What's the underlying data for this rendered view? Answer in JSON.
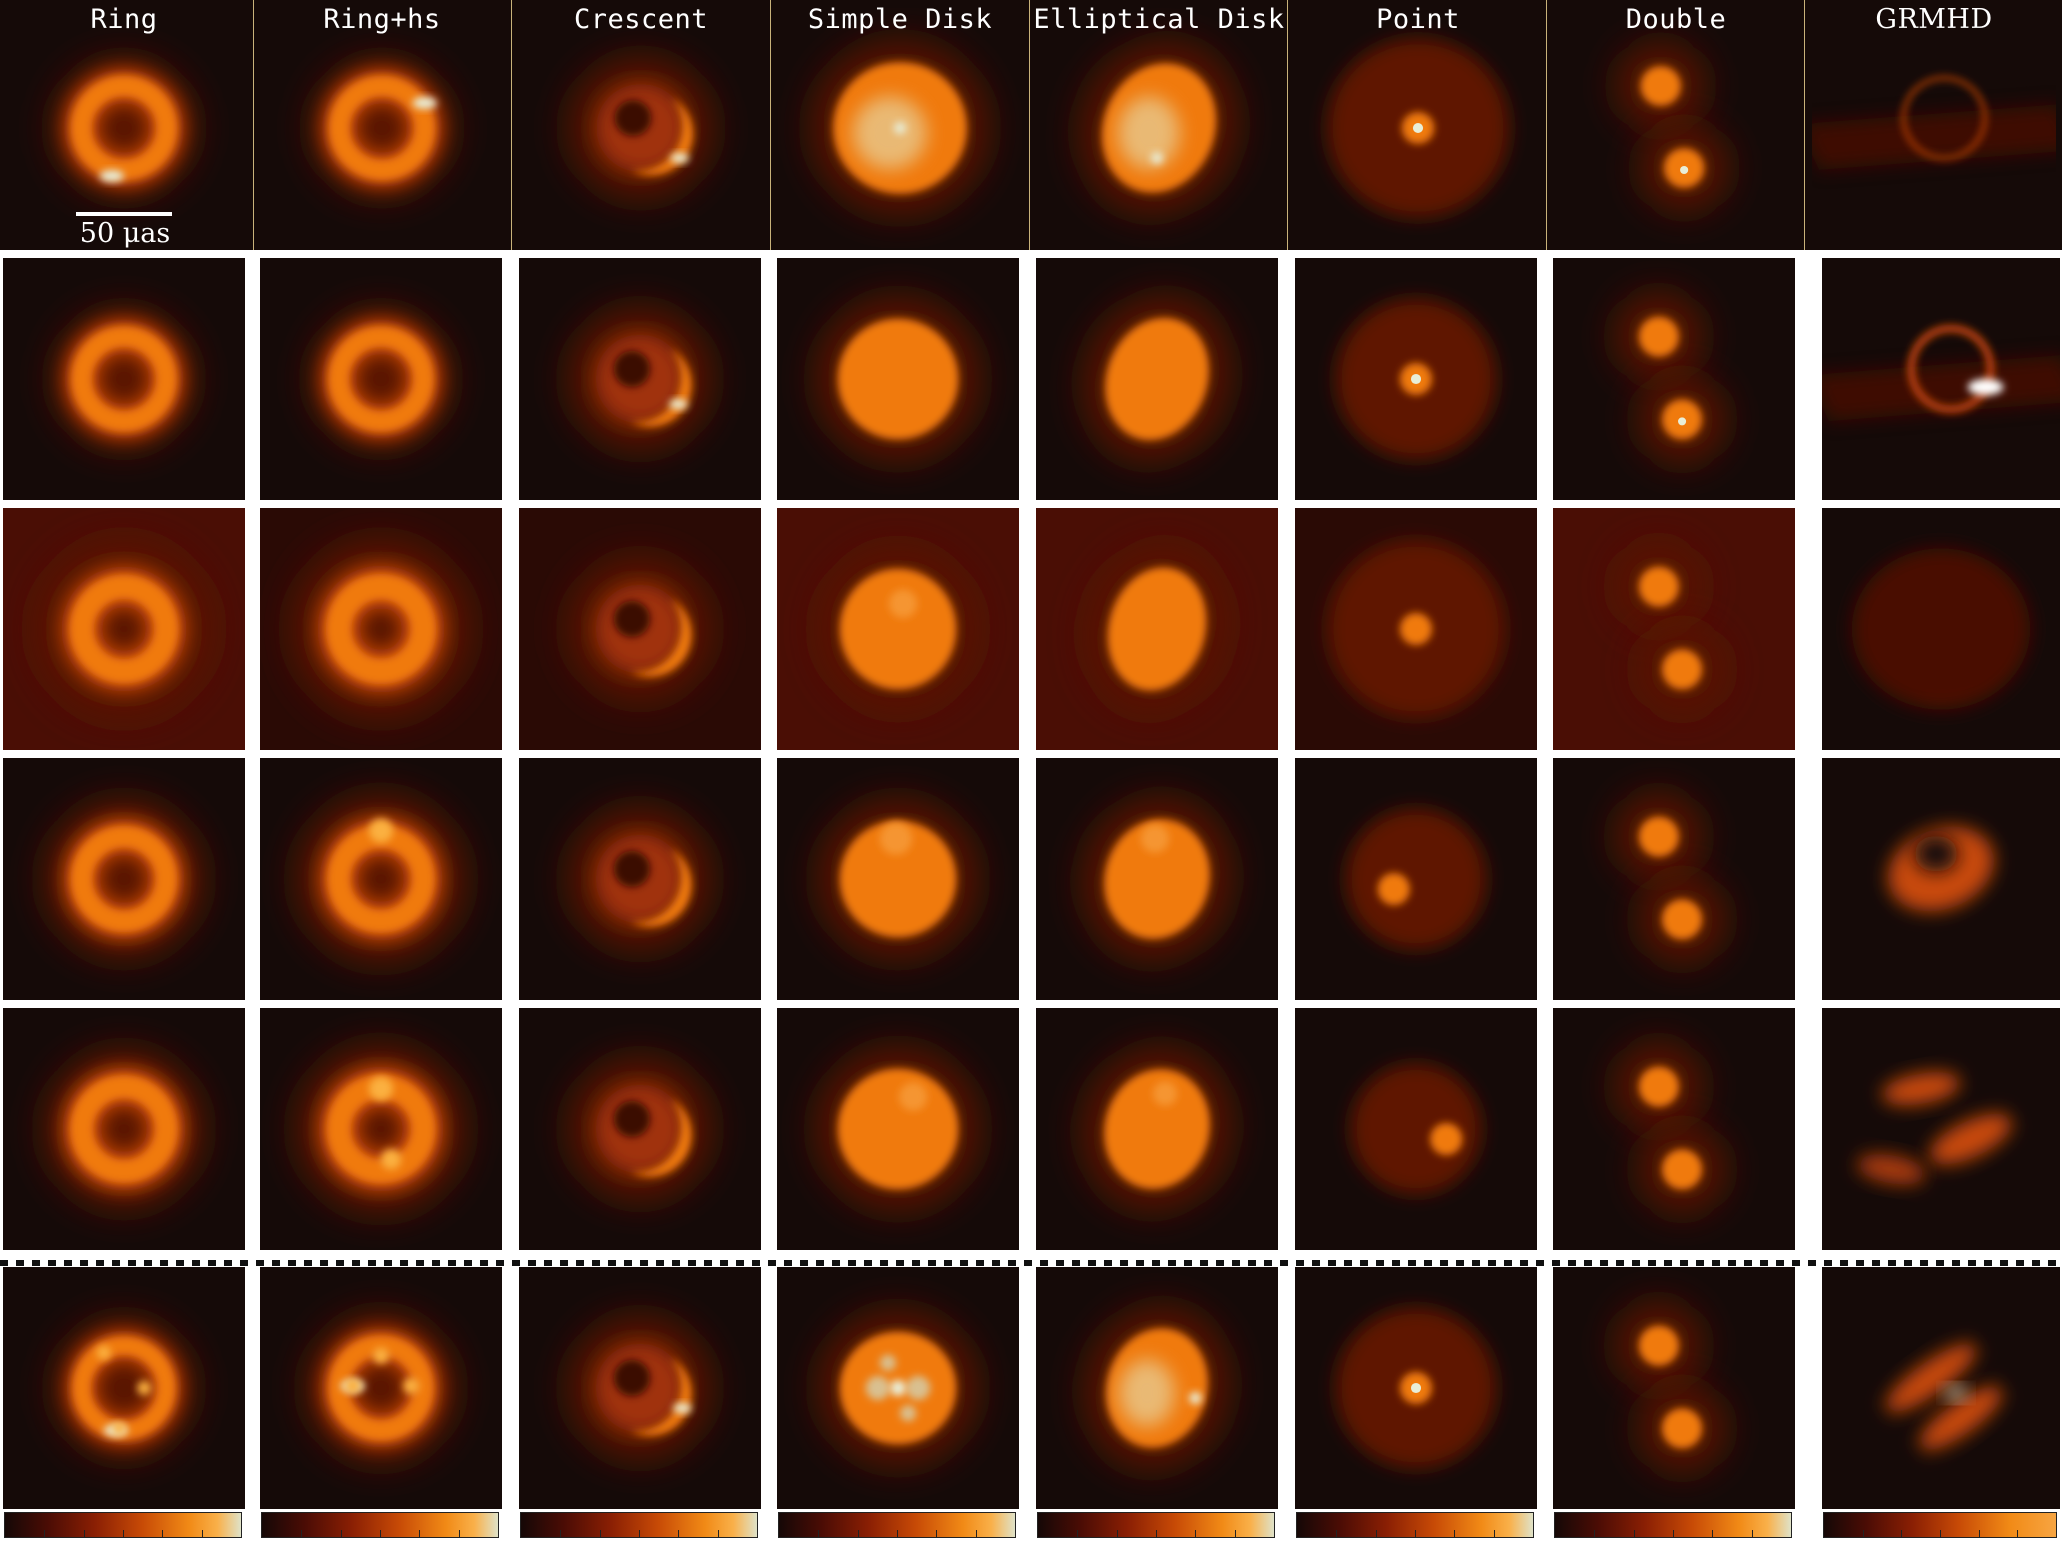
{
  "columns": [
    {
      "title": "Ring"
    },
    {
      "title": "Ring+hs"
    },
    {
      "title": "Crescent"
    },
    {
      "title": "Simple Disk"
    },
    {
      "title": "Elliptical Disk"
    },
    {
      "title": "Point"
    },
    {
      "title": "Double"
    },
    {
      "title": "GRMHD"
    }
  ],
  "scale_bar": {
    "label": "50 μas"
  },
  "colors": {
    "background": "#150a08",
    "dark_red": "#5a1205",
    "orange": "#f07a10",
    "bright": "#fbb040",
    "white_hot": "#e8eed8"
  },
  "row_count": 6,
  "colorbar_icons": [
    "colorbar-icon"
  ]
}
